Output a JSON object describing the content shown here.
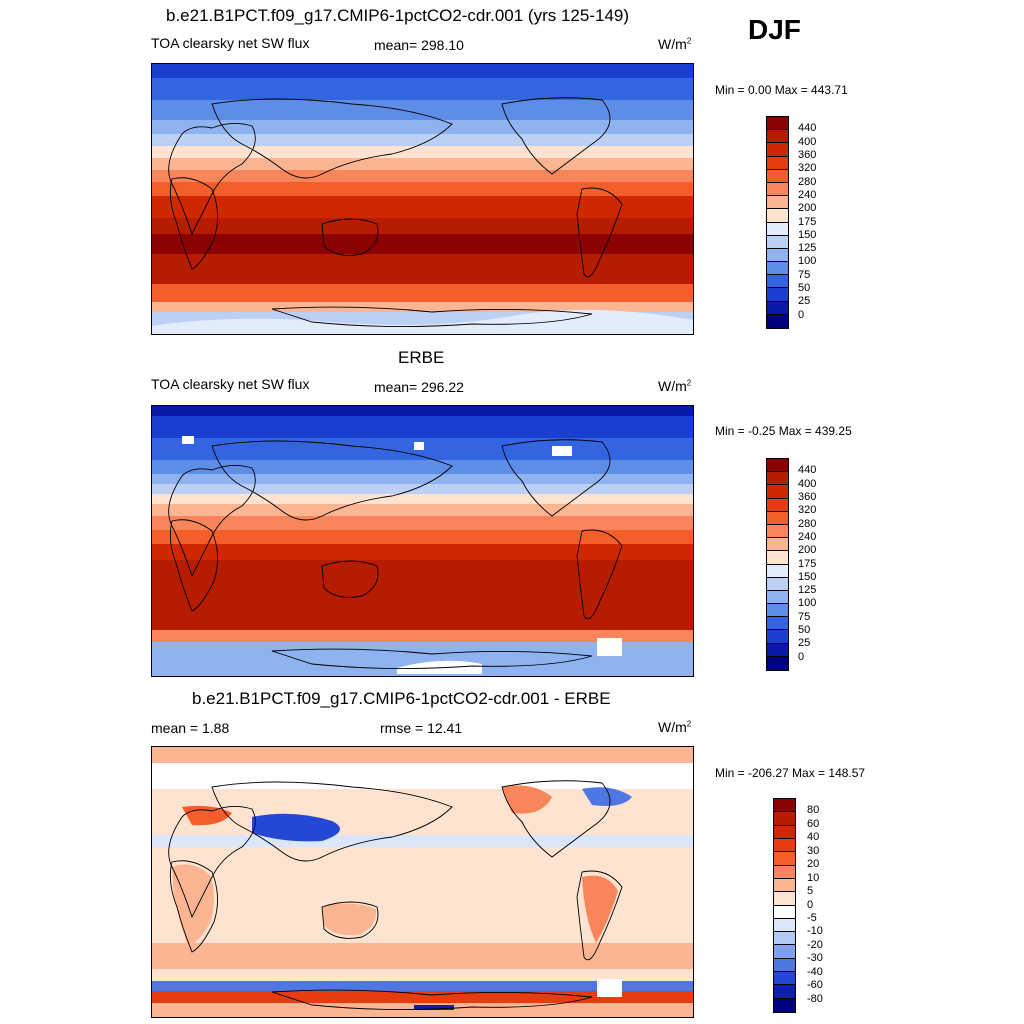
{
  "season": "DJF",
  "panels": [
    {
      "id": "model",
      "title": "b.e21.B1PCT.f09_g17.CMIP6-1pctCO2-cdr.001 (yrs 125-149)",
      "left_text": "TOA clearsky net SW flux",
      "center_text": "mean= 298.10",
      "units": "W/m",
      "units_sup": "2",
      "minmax": "Min =   0.00 Max = 443.71",
      "colorbar": {
        "labels": [
          "440",
          "400",
          "360",
          "320",
          "280",
          "240",
          "200",
          "175",
          "150",
          "125",
          "100",
          "75",
          "50",
          "25",
          "0"
        ],
        "colors": [
          "#8b0000",
          "#b51c00",
          "#cf2800",
          "#e63c10",
          "#f45e2a",
          "#f8865a",
          "#fbb592",
          "#fde3d0",
          "#e3ecfb",
          "#bcd0f5",
          "#8fb2f0",
          "#5e8de8",
          "#3465e0",
          "#1a3ecf",
          "#0a1aa8",
          "#000080"
        ]
      }
    },
    {
      "id": "obs",
      "title": "ERBE",
      "left_text": "TOA clearsky net SW flux",
      "center_text": "mean= 296.22",
      "units": "W/m",
      "units_sup": "2",
      "minmax": "Min =  -0.25 Max = 439.25",
      "colorbar": {
        "labels": [
          "440",
          "400",
          "360",
          "320",
          "280",
          "240",
          "200",
          "175",
          "150",
          "125",
          "100",
          "75",
          "50",
          "25",
          "0"
        ],
        "colors": [
          "#8b0000",
          "#b51c00",
          "#cf2800",
          "#e63c10",
          "#f45e2a",
          "#f8865a",
          "#fbb592",
          "#fde3d0",
          "#e3ecfb",
          "#bcd0f5",
          "#8fb2f0",
          "#5e8de8",
          "#3465e0",
          "#1a3ecf",
          "#0a1aa8",
          "#000080"
        ]
      }
    },
    {
      "id": "diff",
      "title": "b.e21.B1PCT.f09_g17.CMIP6-1pctCO2-cdr.001 - ERBE",
      "left_text": "mean =   1.88",
      "center_text": "rmse =  12.41",
      "units": "W/m",
      "units_sup": "2",
      "minmax": "Min = -206.27 Max = 148.57",
      "colorbar": {
        "labels": [
          "80",
          "60",
          "40",
          "30",
          "20",
          "10",
          "5",
          "0",
          "-5",
          "-10",
          "-20",
          "-30",
          "-40",
          "-60",
          "-80"
        ],
        "colors": [
          "#8b0000",
          "#b51c00",
          "#cf2800",
          "#e63c10",
          "#f45e2a",
          "#f8865a",
          "#fbb592",
          "#fde3d0",
          "#ffffff",
          "#dbe6fa",
          "#b3c8f3",
          "#7fa2ec",
          "#4f77e3",
          "#2447d4",
          "#0c20b0",
          "#000080"
        ]
      }
    }
  ]
}
